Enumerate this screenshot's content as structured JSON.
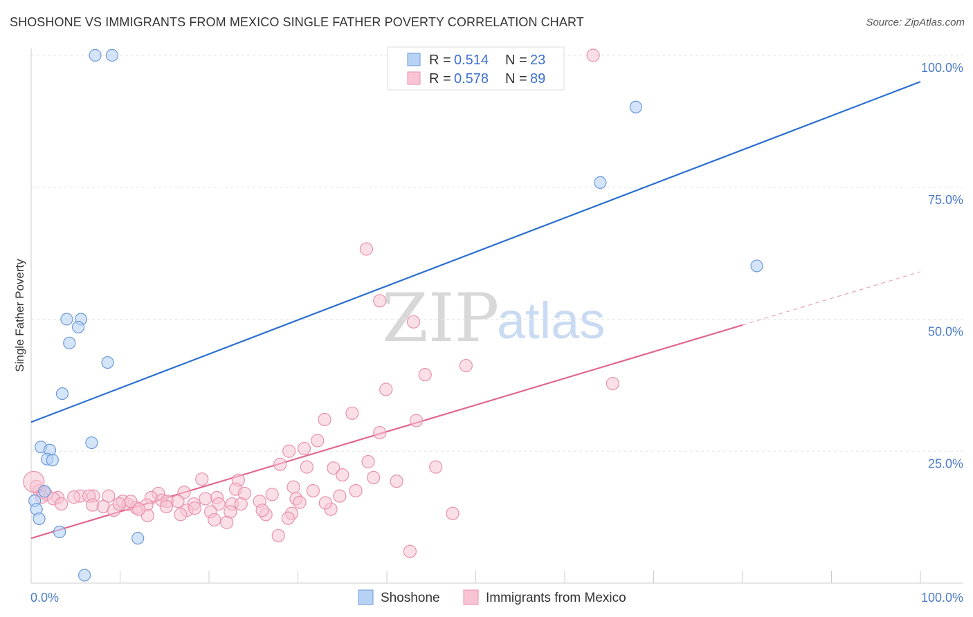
{
  "title": "SHOSHONE VS IMMIGRANTS FROM MEXICO SINGLE FATHER POVERTY CORRELATION CHART",
  "source": "Source: ZipAtlas.com",
  "watermark": {
    "zip": "ZIP",
    "atlas": "atlas"
  },
  "chart_data": {
    "type": "scatter",
    "ylabel": "Single Father Poverty",
    "xlabel": "",
    "xlim": [
      0,
      100
    ],
    "ylim": [
      0,
      100
    ],
    "x_tick_labels": [
      "0.0%",
      "100.0%"
    ],
    "y_ticks": [
      {
        "value": 25,
        "label": "25.0%"
      },
      {
        "value": 50,
        "label": "50.0%"
      },
      {
        "value": 75,
        "label": "75.0%"
      },
      {
        "value": 100,
        "label": "100.0%"
      }
    ],
    "grid": true,
    "legend_position": "top-center",
    "colors": {
      "shoshone_fill": "#b7d2f5",
      "shoshone_stroke": "#6a9ad8",
      "shoshone_line": "#2a6fd0",
      "mexico_fill": "#f8c4d4",
      "mexico_stroke": "#e890ae",
      "mexico_line": "#e0668f"
    },
    "legend": {
      "rows": [
        {
          "r_label": "R =",
          "r_value": "0.514",
          "n_label": "N =",
          "n_value": "23"
        },
        {
          "r_label": "R =",
          "r_value": "0.578",
          "n_label": "N =",
          "n_value": "89"
        }
      ]
    },
    "series": [
      {
        "name": "Shoshone",
        "trend": {
          "x0": 0,
          "y0": 30.5,
          "x1": 100,
          "y1": 95
        },
        "points": [
          [
            7.2,
            100
          ],
          [
            9.1,
            100
          ],
          [
            68.0,
            90.2
          ],
          [
            64.0,
            75.9
          ],
          [
            81.6,
            60.1
          ],
          [
            4.0,
            50.0
          ],
          [
            5.6,
            50.0
          ],
          [
            5.3,
            48.5
          ],
          [
            4.3,
            45.5
          ],
          [
            8.6,
            41.8
          ],
          [
            3.5,
            35.9
          ],
          [
            6.8,
            26.6
          ],
          [
            1.1,
            25.8
          ],
          [
            2.1,
            25.2
          ],
          [
            1.8,
            23.5
          ],
          [
            2.4,
            23.3
          ],
          [
            1.5,
            17.4
          ],
          [
            0.4,
            15.6
          ],
          [
            0.6,
            14.0
          ],
          [
            0.9,
            12.2
          ],
          [
            3.2,
            9.7
          ],
          [
            12.0,
            8.5
          ],
          [
            6.0,
            1.5
          ]
        ]
      },
      {
        "name": "Immigrants from Mexico",
        "trend": {
          "x0": 0,
          "y0": 8.5,
          "x1": 80,
          "y1": 48.9,
          "dash_x1": 100,
          "dash_y1": 59.0
        },
        "points": [
          [
            63.2,
            100
          ],
          [
            37.7,
            63.3
          ],
          [
            39.2,
            53.5
          ],
          [
            43.0,
            49.5
          ],
          [
            48.9,
            41.2
          ],
          [
            44.3,
            39.5
          ],
          [
            65.4,
            37.8
          ],
          [
            39.9,
            36.7
          ],
          [
            36.1,
            32.2
          ],
          [
            33.0,
            31.0
          ],
          [
            43.3,
            30.8
          ],
          [
            39.2,
            28.5
          ],
          [
            32.2,
            27.0
          ],
          [
            30.7,
            25.5
          ],
          [
            29.0,
            25.0
          ],
          [
            37.9,
            23.0
          ],
          [
            28.0,
            22.5
          ],
          [
            31.0,
            22.0
          ],
          [
            34.0,
            21.8
          ],
          [
            45.5,
            22.0
          ],
          [
            35.0,
            20.5
          ],
          [
            38.5,
            20.0
          ],
          [
            19.2,
            19.7
          ],
          [
            23.3,
            19.5
          ],
          [
            41.1,
            19.3
          ],
          [
            29.5,
            18.2
          ],
          [
            23.0,
            17.8
          ],
          [
            31.7,
            17.5
          ],
          [
            36.5,
            17.5
          ],
          [
            24.0,
            17.0
          ],
          [
            17.2,
            17.2
          ],
          [
            14.3,
            17.0
          ],
          [
            8.7,
            16.5
          ],
          [
            7.0,
            16.5
          ],
          [
            5.5,
            16.5
          ],
          [
            4.8,
            16.3
          ],
          [
            6.5,
            16.5
          ],
          [
            3.0,
            16.2
          ],
          [
            1.7,
            16.8
          ],
          [
            1.4,
            17.2
          ],
          [
            0.9,
            17.5
          ],
          [
            0.6,
            18.3
          ],
          [
            13.5,
            16.2
          ],
          [
            20.9,
            16.2
          ],
          [
            34.7,
            16.5
          ],
          [
            29.8,
            16.0
          ],
          [
            19.6,
            16.0
          ],
          [
            25.7,
            15.5
          ],
          [
            10.3,
            15.5
          ],
          [
            14.7,
            15.7
          ],
          [
            15.3,
            15.5
          ],
          [
            30.2,
            15.3
          ],
          [
            27.1,
            16.8
          ],
          [
            21.1,
            15.0
          ],
          [
            16.5,
            15.5
          ],
          [
            10.9,
            14.9
          ],
          [
            22.6,
            15.0
          ],
          [
            11.8,
            14.3
          ],
          [
            6.9,
            14.8
          ],
          [
            8.1,
            14.5
          ],
          [
            11.2,
            15.5
          ],
          [
            23.6,
            15.0
          ],
          [
            18.3,
            15.0
          ],
          [
            13.0,
            14.8
          ],
          [
            15.2,
            14.5
          ],
          [
            17.5,
            13.8
          ],
          [
            9.3,
            13.8
          ],
          [
            20.2,
            13.5
          ],
          [
            16.8,
            13.0
          ],
          [
            26.4,
            13.0
          ],
          [
            22.4,
            13.5
          ],
          [
            33.7,
            14.0
          ],
          [
            18.4,
            14.2
          ],
          [
            26.0,
            13.8
          ],
          [
            29.3,
            13.2
          ],
          [
            47.4,
            13.2
          ],
          [
            28.9,
            12.3
          ],
          [
            20.6,
            12.0
          ],
          [
            2.5,
            16.0
          ],
          [
            3.4,
            15.0
          ],
          [
            22.0,
            11.5
          ],
          [
            13.1,
            12.8
          ],
          [
            27.8,
            9.0
          ],
          [
            42.6,
            6.0
          ],
          [
            33.1,
            15.2
          ],
          [
            1.2,
            16.3
          ],
          [
            9.9,
            15.0
          ],
          [
            12.1,
            14.0
          ],
          [
            0.3,
            19.2
          ]
        ]
      }
    ]
  },
  "bottom_legend": [
    {
      "label": "Shoshone"
    },
    {
      "label": "Immigrants from Mexico"
    }
  ]
}
